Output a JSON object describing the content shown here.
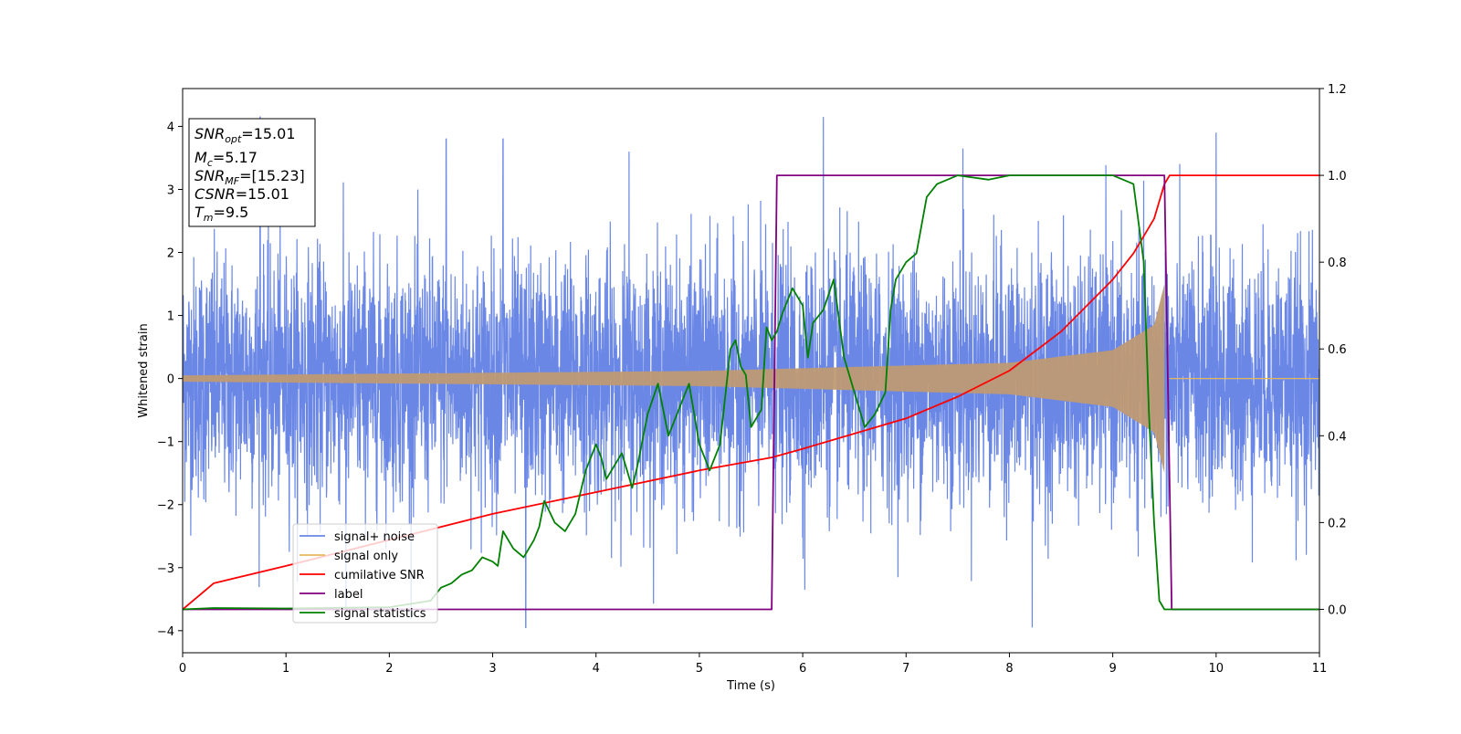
{
  "chart_data": {
    "type": "line",
    "title": "",
    "xlabel": "Time (s)",
    "ylabel": "Whitened strain",
    "y2label": "",
    "xlim": [
      0,
      11
    ],
    "ylim": [
      -4.35,
      4.6
    ],
    "y2lim": [
      -0.1,
      1.2
    ],
    "xticks": [
      "0",
      "1",
      "2",
      "3",
      "4",
      "5",
      "6",
      "7",
      "8",
      "9",
      "10",
      "11"
    ],
    "yticks": [
      "−4",
      "−3",
      "−2",
      "−1",
      "0",
      "1",
      "2",
      "3",
      "4"
    ],
    "y2ticks": [
      "0.0",
      "0.2",
      "0.4",
      "0.6",
      "0.8",
      "1.0",
      "1.2"
    ],
    "grid": false,
    "legend_position": "lower-left",
    "colors": {
      "signal_noise": "#6a87e6",
      "signal_only": "#e6b85c",
      "overlap": "#bf9a74",
      "cumulative_snr": "#ff0000",
      "label": "#800080",
      "signal_statistics": "#008000"
    },
    "annotation": {
      "snr_opt_label": "SNR",
      "snr_opt_sub": "opt",
      "snr_opt_value": "=15.01",
      "mc_label": "M",
      "mc_sub": "c",
      "mc_value": "=5.17",
      "snr_mf_label": "SNR",
      "snr_mf_sub": "MF",
      "snr_mf_value": "=[15.23]",
      "csnr_label": "CSNR",
      "csnr_value": "=15.01",
      "tm_label": "T",
      "tm_sub": "m",
      "tm_value": "=9.5"
    },
    "series": [
      {
        "name": "signal+ noise",
        "axis": "left",
        "description_values": "whitened noise, roughly ±2.5 with spikes up to ~4.2",
        "noise_amplitude": 0.95,
        "spikes": [
          [
            0.75,
            4.15
          ],
          [
            1.58,
            -3.7
          ],
          [
            2.55,
            3.8
          ],
          [
            3.1,
            3.8
          ],
          [
            3.32,
            -3.95
          ],
          [
            4.32,
            3.6
          ],
          [
            6.2,
            4.15
          ],
          [
            6.02,
            -3.35
          ],
          [
            8.22,
            -3.95
          ],
          [
            10.0,
            3.9
          ],
          [
            7.55,
            3.65
          ]
        ]
      },
      {
        "name": "signal only",
        "axis": "left",
        "chirp_tc": 9.55,
        "chirp_end": 9.5,
        "amp_ref": [
          [
            0.0,
            0.05
          ],
          [
            5.0,
            0.12
          ],
          [
            8.0,
            0.25
          ],
          [
            9.0,
            0.45
          ],
          [
            9.4,
            0.85
          ],
          [
            9.5,
            1.5
          ]
        ]
      },
      {
        "name": "cumilative SNR",
        "axis": "right",
        "x": [
          0,
          0.3,
          1,
          2,
          3,
          4,
          5,
          5.7,
          6,
          7,
          7.5,
          8,
          8.5,
          9,
          9.2,
          9.4,
          9.5,
          9.55,
          11
        ],
        "values": [
          0.0,
          0.06,
          0.1,
          0.16,
          0.22,
          0.27,
          0.32,
          0.35,
          0.37,
          0.44,
          0.49,
          0.55,
          0.64,
          0.76,
          0.82,
          0.9,
          0.98,
          1.0,
          1.0
        ]
      },
      {
        "name": "label",
        "axis": "right",
        "x": [
          0,
          5.7,
          5.75,
          9.5,
          9.57,
          11
        ],
        "values": [
          0.0,
          0.0,
          1.0,
          1.0,
          0.0,
          0.0
        ]
      },
      {
        "name": "signal statistics",
        "axis": "right",
        "x": [
          0,
          0.3,
          1.0,
          2.0,
          2.4,
          2.5,
          2.6,
          2.7,
          2.8,
          2.9,
          3.0,
          3.05,
          3.1,
          3.2,
          3.3,
          3.4,
          3.45,
          3.5,
          3.6,
          3.7,
          3.8,
          3.9,
          4.0,
          4.05,
          4.1,
          4.2,
          4.25,
          4.3,
          4.35,
          4.4,
          4.5,
          4.6,
          4.7,
          4.8,
          4.9,
          5.0,
          5.05,
          5.1,
          5.2,
          5.3,
          5.35,
          5.4,
          5.45,
          5.5,
          5.6,
          5.65,
          5.7,
          5.75,
          5.8,
          5.9,
          6.0,
          6.05,
          6.1,
          6.2,
          6.3,
          6.4,
          6.5,
          6.6,
          6.7,
          6.8,
          6.85,
          6.9,
          7.0,
          7.1,
          7.2,
          7.3,
          7.5,
          7.8,
          8.0,
          8.5,
          9.0,
          9.1,
          9.2,
          9.3,
          9.35,
          9.4,
          9.45,
          9.5,
          9.6,
          11
        ],
        "values": [
          0.0,
          0.003,
          0.002,
          0.005,
          0.02,
          0.05,
          0.06,
          0.08,
          0.09,
          0.12,
          0.11,
          0.1,
          0.18,
          0.14,
          0.12,
          0.16,
          0.19,
          0.25,
          0.2,
          0.18,
          0.22,
          0.32,
          0.38,
          0.35,
          0.3,
          0.34,
          0.36,
          0.32,
          0.28,
          0.33,
          0.45,
          0.52,
          0.4,
          0.46,
          0.52,
          0.38,
          0.35,
          0.32,
          0.38,
          0.6,
          0.62,
          0.56,
          0.54,
          0.42,
          0.46,
          0.65,
          0.62,
          0.64,
          0.68,
          0.74,
          0.7,
          0.58,
          0.66,
          0.69,
          0.76,
          0.58,
          0.5,
          0.42,
          0.45,
          0.5,
          0.69,
          0.76,
          0.8,
          0.82,
          0.95,
          0.98,
          1.0,
          0.99,
          1.0,
          1.0,
          1.0,
          0.99,
          0.98,
          0.8,
          0.45,
          0.2,
          0.02,
          0.0,
          0.0,
          0.0
        ]
      }
    ]
  }
}
